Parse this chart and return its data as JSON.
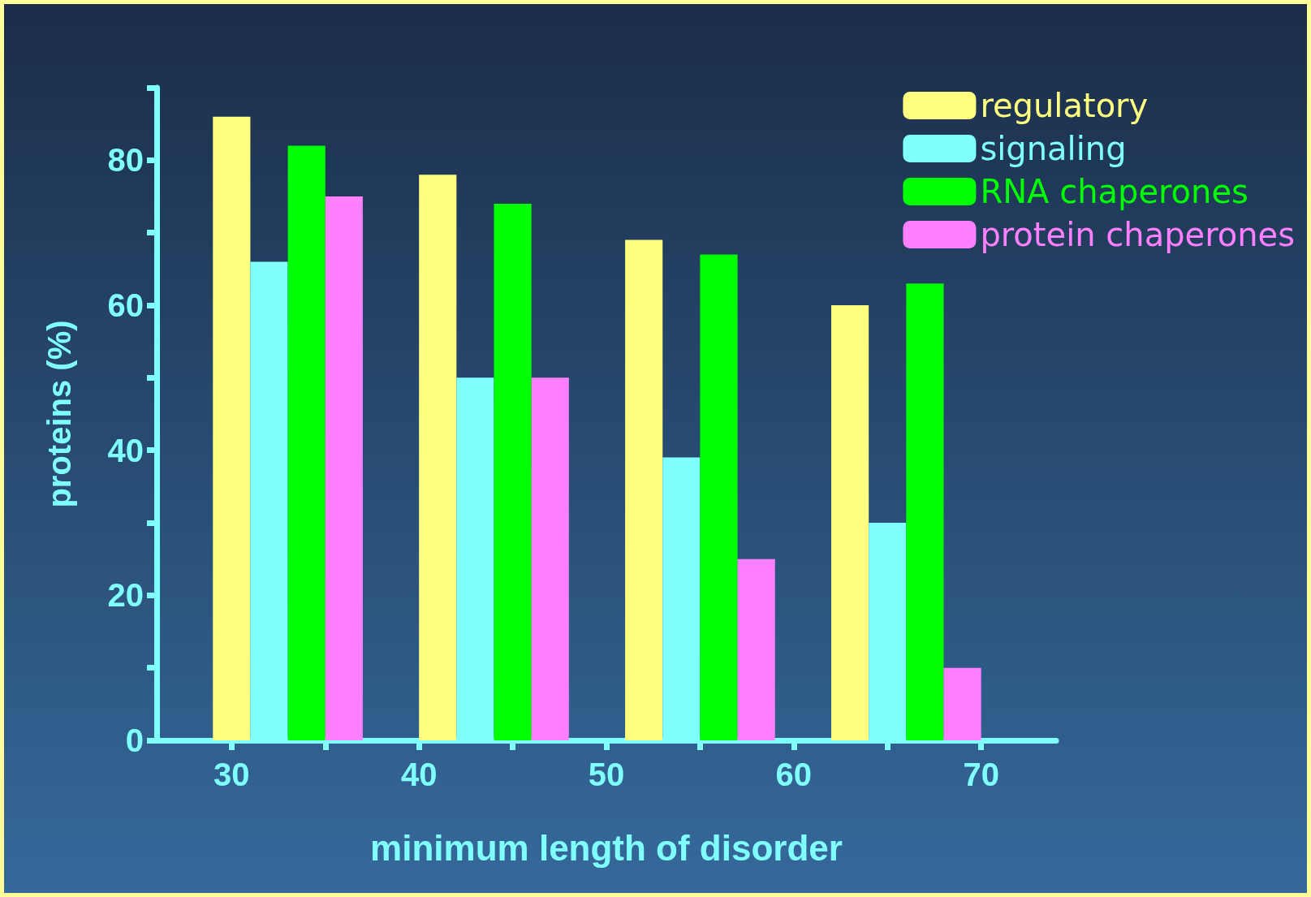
{
  "chart_data": {
    "type": "bar",
    "xlabel": "minimum length of disorder",
    "ylabel": "proteins (%)",
    "xlim": [
      26,
      74
    ],
    "xticks": [
      30,
      {
        "value": 35,
        "label": null
      },
      40,
      {
        "value": 45,
        "label": null
      },
      50,
      {
        "value": 55,
        "label": null
      },
      60,
      {
        "value": 65,
        "label": null
      },
      70
    ],
    "ylim": [
      0,
      90
    ],
    "yticks": [
      0,
      {
        "value": 10,
        "label": null
      },
      20,
      {
        "value": 30,
        "label": null
      },
      40,
      {
        "value": 50,
        "label": null
      },
      60,
      {
        "value": 70,
        "label": null
      },
      80,
      {
        "value": 90,
        "label": null
      }
    ],
    "series": [
      {
        "name": "regulatory",
        "color": "#ffff80",
        "x": [
          30,
          41,
          52,
          63
        ],
        "values": [
          86,
          78,
          69,
          60
        ]
      },
      {
        "name": "signaling",
        "color": "#80ffff",
        "x": [
          32,
          43,
          54,
          65
        ],
        "values": [
          66,
          50,
          39,
          30
        ]
      },
      {
        "name": "RNA chaperones",
        "color": "#00ff00",
        "x": [
          34,
          45,
          56,
          67
        ],
        "values": [
          82,
          74,
          67,
          63
        ]
      },
      {
        "name": "protein chaperones",
        "color": "#ff80ff",
        "x": [
          36,
          47,
          58,
          69
        ],
        "values": [
          75,
          50,
          25,
          10
        ]
      }
    ],
    "grid": false,
    "legend": "top right"
  }
}
